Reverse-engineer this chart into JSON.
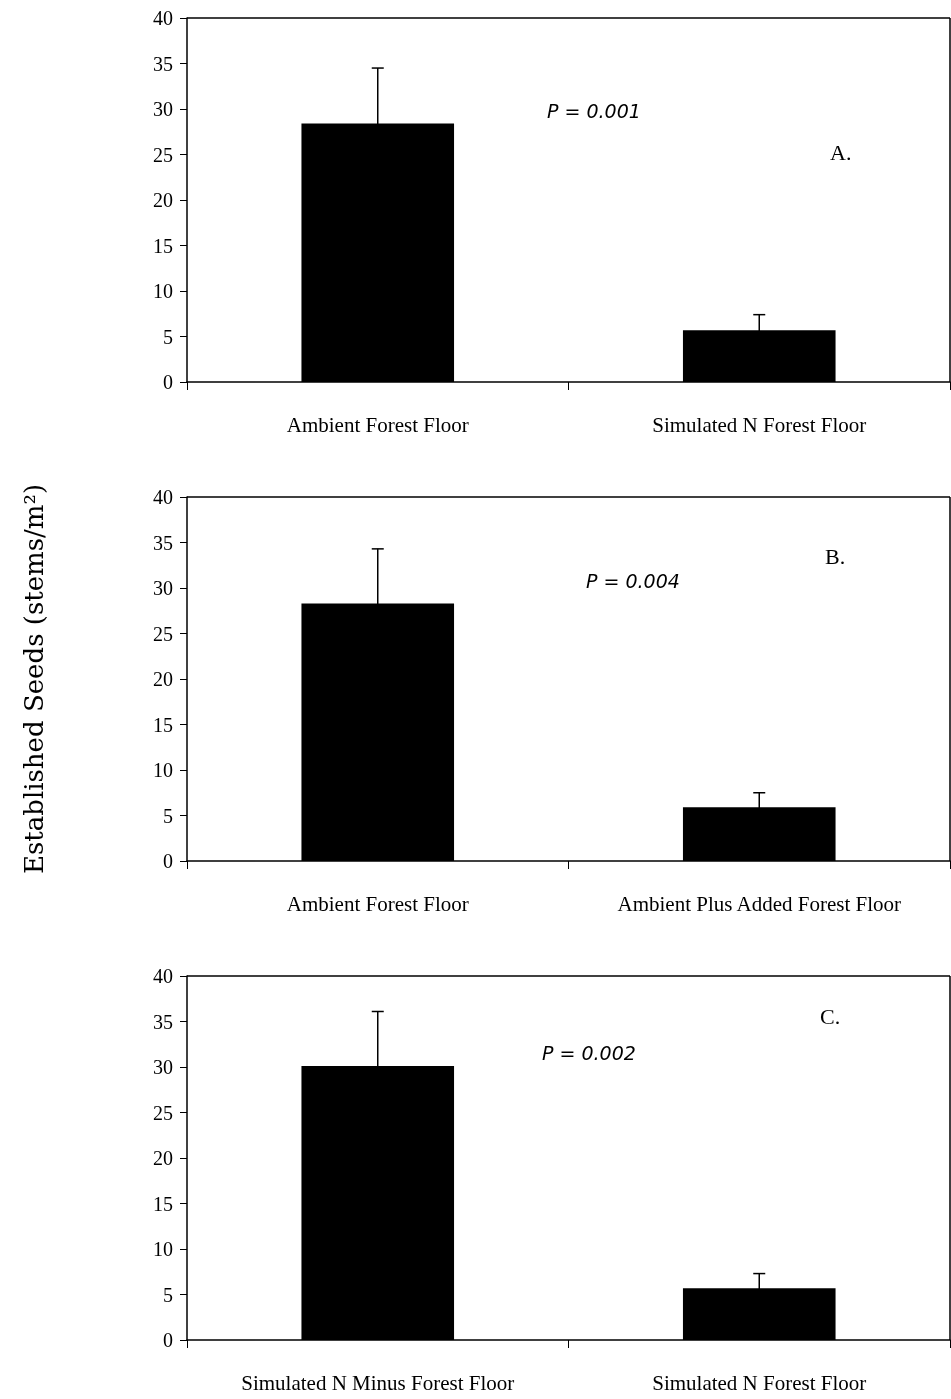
{
  "chart_data": [
    {
      "type": "bar",
      "categories": [
        "Ambient Forest Floor",
        "Simulated N Forest Floor"
      ],
      "values": [
        28.4,
        5.7
      ],
      "errors": [
        6.1,
        1.7
      ],
      "color": "#000000",
      "ylim": [
        0,
        40
      ],
      "yticks": [
        0,
        5,
        10,
        15,
        20,
        25,
        30,
        35,
        40
      ],
      "grid": false,
      "annotations": [
        "P = 0.001",
        "A."
      ]
    },
    {
      "type": "bar",
      "categories": [
        "Ambient Forest Floor",
        "Ambient Plus Added Forest Floor"
      ],
      "values": [
        28.3,
        5.9
      ],
      "errors": [
        6.0,
        1.6
      ],
      "color": "#000000",
      "ylim": [
        0,
        40
      ],
      "yticks": [
        0,
        5,
        10,
        15,
        20,
        25,
        30,
        35,
        40
      ],
      "grid": false,
      "ylabel": "Established Seeds (stems/m²)",
      "annotations": [
        "P = 0.004",
        "B."
      ]
    },
    {
      "type": "bar",
      "categories": [
        "Simulated N Minus Forest Floor",
        "Simulated N Forest Floor"
      ],
      "values": [
        30.1,
        5.7
      ],
      "errors": [
        6.0,
        1.6
      ],
      "color": "#000000",
      "ylim": [
        0,
        40
      ],
      "yticks": [
        0,
        5,
        10,
        15,
        20,
        25,
        30,
        35,
        40
      ],
      "grid": false,
      "annotations": [
        "P = 0.002",
        "C."
      ]
    }
  ]
}
